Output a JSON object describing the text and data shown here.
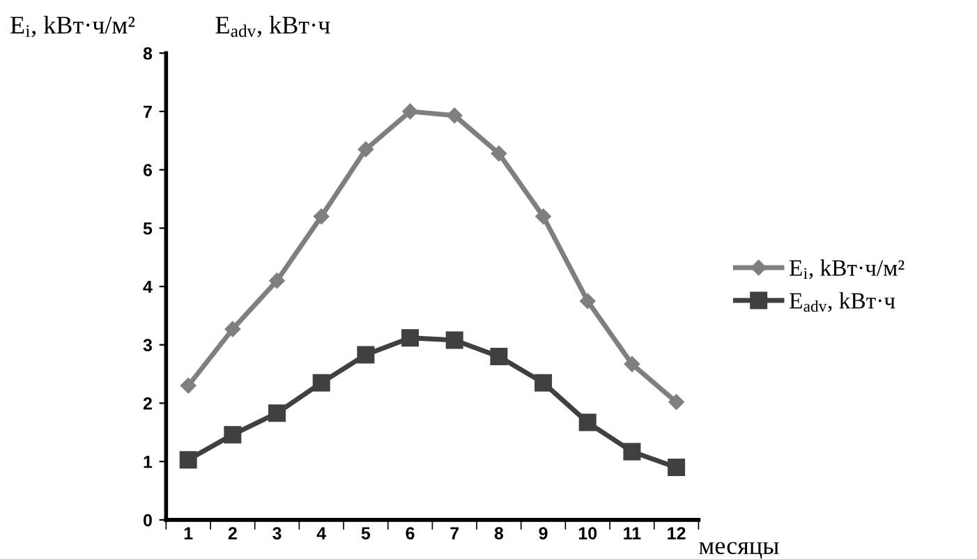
{
  "chart_data": {
    "type": "line",
    "ylabel": "E$_{i}$, kВт·ч/м²",
    "xlabel": "месяцы",
    "annotations": [
      "E$_{adv}$, kВт·ч"
    ],
    "categories": [
      "1",
      "2",
      "3",
      "4",
      "5",
      "6",
      "7",
      "8",
      "9",
      "10",
      "11",
      "12"
    ],
    "series": [
      {
        "name": "E$_{i}$, kВт·ч/м²",
        "color": "#7f7f7f",
        "marker": "diamond",
        "values": [
          2.3,
          3.27,
          4.1,
          5.2,
          6.35,
          7.0,
          6.93,
          6.28,
          5.2,
          3.75,
          2.67,
          2.02
        ]
      },
      {
        "name": "E$_{adv}$, kВт·ч",
        "color": "#404040",
        "marker": "square",
        "values": [
          1.03,
          1.46,
          1.83,
          2.35,
          2.83,
          3.12,
          3.08,
          2.8,
          2.35,
          1.67,
          1.17,
          0.9
        ]
      }
    ],
    "ylim": [
      0,
      8
    ],
    "yticks": [
      0,
      1,
      2,
      3,
      4,
      5,
      6,
      7,
      8
    ],
    "grid": false,
    "legend": "right",
    "line_style": "solid"
  }
}
